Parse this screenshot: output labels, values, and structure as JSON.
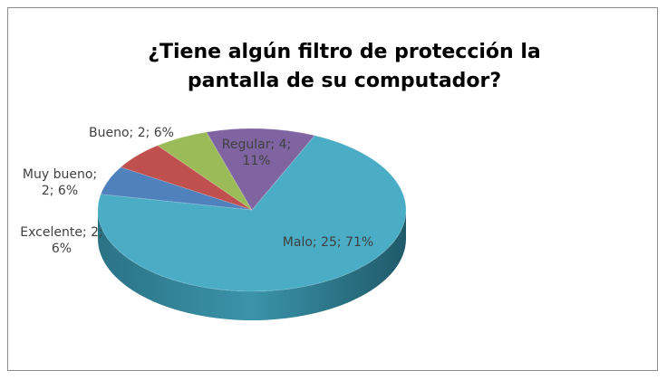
{
  "chart_data": {
    "type": "pie",
    "title": "¿Tiene algún filtro de protección la pantalla de su computador?",
    "categories": [
      "Malo",
      "Excelente",
      "Muy bueno",
      "Bueno",
      "Regular"
    ],
    "values": [
      25,
      2,
      2,
      2,
      4
    ],
    "value_labels": [
      "Malo; 25; 71%",
      "Excelente; 2; 6%",
      "Muy bueno; 2; 6%",
      "Bueno; 2; 6%",
      "Regular; 4; 11%"
    ],
    "colors": [
      "#4bacc6",
      "#4f81bd",
      "#c0504d",
      "#9bbb59",
      "#8064a2"
    ],
    "three_d": true
  }
}
